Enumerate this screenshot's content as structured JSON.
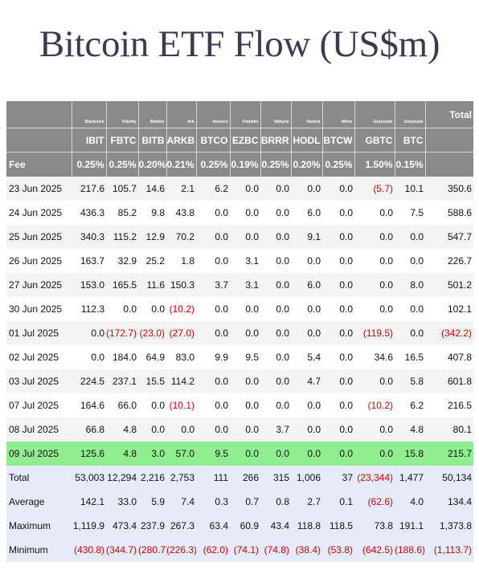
{
  "title": "Bitcoin ETF Flow (US$m)",
  "header": {
    "issuers": [
      "Blackrock",
      "Fidelity",
      "Bitwise",
      "Ark",
      "Invesco",
      "Franklin",
      "Valkyrie",
      "Vaneck",
      "Wtree",
      "Grayscale",
      "Grayscale"
    ],
    "total_label": "Total",
    "tickers": [
      "IBIT",
      "FBTC",
      "BITB",
      "ARKB",
      "BTCO",
      "EZBC",
      "BRRR",
      "HODL",
      "BTCW",
      "GBTC",
      "BTC"
    ],
    "fee_label": "Fee",
    "fees": [
      "0.25%",
      "0.25%",
      "0.20%",
      "0.21%",
      "0.25%",
      "0.19%",
      "0.25%",
      "0.20%",
      "0.25%",
      "1.50%",
      "0.15%"
    ]
  },
  "rows": [
    {
      "date": "23 Jun 2025",
      "values": [
        "217.6",
        "105.7",
        "14.6",
        "2.1",
        "6.2",
        "0.0",
        "0.0",
        "0.0",
        "0.0",
        "(5.7)",
        "10.1"
      ],
      "total": "350.6"
    },
    {
      "date": "24 Jun 2025",
      "values": [
        "436.3",
        "85.2",
        "9.8",
        "43.8",
        "0.0",
        "0.0",
        "0.0",
        "6.0",
        "0.0",
        "0.0",
        "7.5"
      ],
      "total": "588.6"
    },
    {
      "date": "25 Jun 2025",
      "values": [
        "340.3",
        "115.2",
        "12.9",
        "70.2",
        "0.0",
        "0.0",
        "0.0",
        "9.1",
        "0.0",
        "0.0",
        "0.0"
      ],
      "total": "547.7"
    },
    {
      "date": "26 Jun 2025",
      "values": [
        "163.7",
        "32.9",
        "25.2",
        "1.8",
        "0.0",
        "3.1",
        "0.0",
        "0.0",
        "0.0",
        "0.0",
        "0.0"
      ],
      "total": "226.7"
    },
    {
      "date": "27 Jun 2025",
      "values": [
        "153.0",
        "165.5",
        "11.6",
        "150.3",
        "3.7",
        "3.1",
        "0.0",
        "6.0",
        "0.0",
        "0.0",
        "8.0"
      ],
      "total": "501.2"
    },
    {
      "date": "30 Jun 2025",
      "values": [
        "112.3",
        "0.0",
        "0.0",
        "(10.2)",
        "0.0",
        "0.0",
        "0.0",
        "0.0",
        "0.0",
        "0.0",
        "0.0"
      ],
      "total": "102.1"
    },
    {
      "date": "01 Jul 2025",
      "values": [
        "0.0",
        "(172.7)",
        "(23.0)",
        "(27.0)",
        "0.0",
        "0.0",
        "0.0",
        "0.0",
        "0.0",
        "(119.5)",
        "0.0"
      ],
      "total": "(342.2)"
    },
    {
      "date": "02 Jul 2025",
      "values": [
        "0.0",
        "184.0",
        "64.9",
        "83.0",
        "9.9",
        "9.5",
        "0.0",
        "5.4",
        "0.0",
        "34.6",
        "16.5"
      ],
      "total": "407.8"
    },
    {
      "date": "03 Jul 2025",
      "values": [
        "224.5",
        "237.1",
        "15.5",
        "114.2",
        "0.0",
        "0.0",
        "0.0",
        "4.7",
        "0.0",
        "0.0",
        "5.8"
      ],
      "total": "601.8"
    },
    {
      "date": "07 Jul 2025",
      "values": [
        "164.6",
        "66.0",
        "0.0",
        "(10.1)",
        "0.0",
        "0.0",
        "0.0",
        "0.0",
        "0.0",
        "(10.2)",
        "6.2"
      ],
      "total": "216.5"
    },
    {
      "date": "08 Jul 2025",
      "values": [
        "66.8",
        "4.8",
        "0.0",
        "0.0",
        "0.0",
        "0.0",
        "3.7",
        "0.0",
        "0.0",
        "0.0",
        "4.8"
      ],
      "total": "80.1"
    },
    {
      "date": "09 Jul 2025",
      "values": [
        "125.6",
        "4.8",
        "3.0",
        "57.0",
        "9.5",
        "0.0",
        "0.0",
        "0.0",
        "0.0",
        "0.0",
        "15.8"
      ],
      "total": "215.7",
      "highlight": true
    }
  ],
  "summary": [
    {
      "label": "Total",
      "values": [
        "53,003",
        "12,294",
        "2,216",
        "2,753",
        "111",
        "266",
        "315",
        "1,006",
        "37",
        "(23,344)",
        "1,477"
      ],
      "total": "50,134"
    },
    {
      "label": "Average",
      "values": [
        "142.1",
        "33.0",
        "5.9",
        "7.4",
        "0.3",
        "0.7",
        "0.8",
        "2.7",
        "0.1",
        "(62.6)",
        "4.0"
      ],
      "total": "134.4"
    },
    {
      "label": "Maximum",
      "values": [
        "1,119.9",
        "473.4",
        "237.9",
        "267.3",
        "63.4",
        "60.9",
        "43.4",
        "118.8",
        "118.5",
        "73.8",
        "191.1"
      ],
      "total": "1,373.8"
    },
    {
      "label": "Minimum",
      "values": [
        "(430.8)",
        "(344.7)",
        "(280.7)",
        "(226.3)",
        "(62.0)",
        "(74.1)",
        "(74.8)",
        "(38.4)",
        "(53.8)",
        "(642.5)",
        "(188.6)"
      ],
      "total": "(1,113.7)"
    }
  ],
  "colors": {
    "header_bg": "#8a8a8a",
    "highlight_row": "#90ee90",
    "summary_bg": "#e5ebf8",
    "negative": "#d40000",
    "title": "#3a3b4e"
  }
}
